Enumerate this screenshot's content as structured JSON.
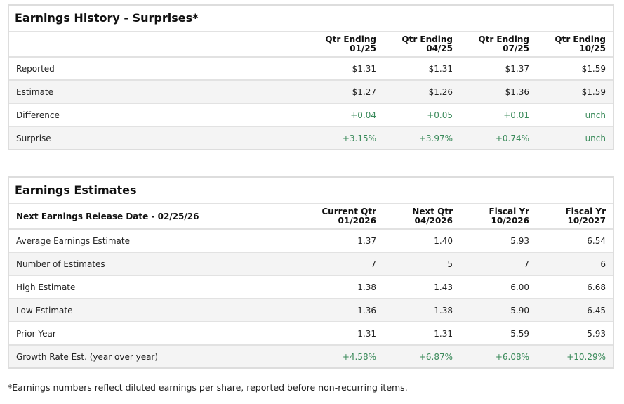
{
  "history": {
    "title": "Earnings History - Surprises*",
    "columns": [
      [
        "Qtr Ending",
        "01/25"
      ],
      [
        "Qtr Ending",
        "04/25"
      ],
      [
        "Qtr Ending",
        "07/25"
      ],
      [
        "Qtr Ending",
        "10/25"
      ]
    ],
    "rows": [
      {
        "label": "Reported",
        "values": [
          "$1.31",
          "$1.31",
          "$1.37",
          "$1.59"
        ],
        "green": false
      },
      {
        "label": "Estimate",
        "values": [
          "$1.27",
          "$1.26",
          "$1.36",
          "$1.59"
        ],
        "green": false
      },
      {
        "label": "Difference",
        "values": [
          "+0.04",
          "+0.05",
          "+0.01",
          "unch"
        ],
        "green": true
      },
      {
        "label": "Surprise",
        "values": [
          "+3.15%",
          "+3.97%",
          "+0.74%",
          "unch"
        ],
        "green": true
      }
    ]
  },
  "estimates": {
    "title": "Earnings Estimates",
    "header_label": "Next Earnings Release Date - 02/25/26",
    "columns": [
      [
        "Current Qtr",
        "01/2026"
      ],
      [
        "Next Qtr",
        "04/2026"
      ],
      [
        "Fiscal Yr",
        "10/2026"
      ],
      [
        "Fiscal Yr",
        "10/2027"
      ]
    ],
    "rows": [
      {
        "label": "Average Earnings Estimate",
        "values": [
          "1.37",
          "1.40",
          "5.93",
          "6.54"
        ],
        "green": false
      },
      {
        "label": "Number of Estimates",
        "values": [
          "7",
          "5",
          "7",
          "6"
        ],
        "green": false
      },
      {
        "label": "High Estimate",
        "values": [
          "1.38",
          "1.43",
          "6.00",
          "6.68"
        ],
        "green": false
      },
      {
        "label": "Low Estimate",
        "values": [
          "1.36",
          "1.38",
          "5.90",
          "6.45"
        ],
        "green": false
      },
      {
        "label": "Prior Year",
        "values": [
          "1.31",
          "1.31",
          "5.59",
          "5.93"
        ],
        "green": false
      },
      {
        "label": "Growth Rate Est. (year over year)",
        "values": [
          "+4.58%",
          "+6.87%",
          "+6.08%",
          "+10.29%"
        ],
        "green": true
      }
    ]
  },
  "footnote": "*Earnings numbers reflect diluted earnings per share, reported before non-recurring items.",
  "colors": {
    "positive": "#3a8a5a",
    "row_alt": "#f4f4f4",
    "border": "#e2e2e2"
  }
}
